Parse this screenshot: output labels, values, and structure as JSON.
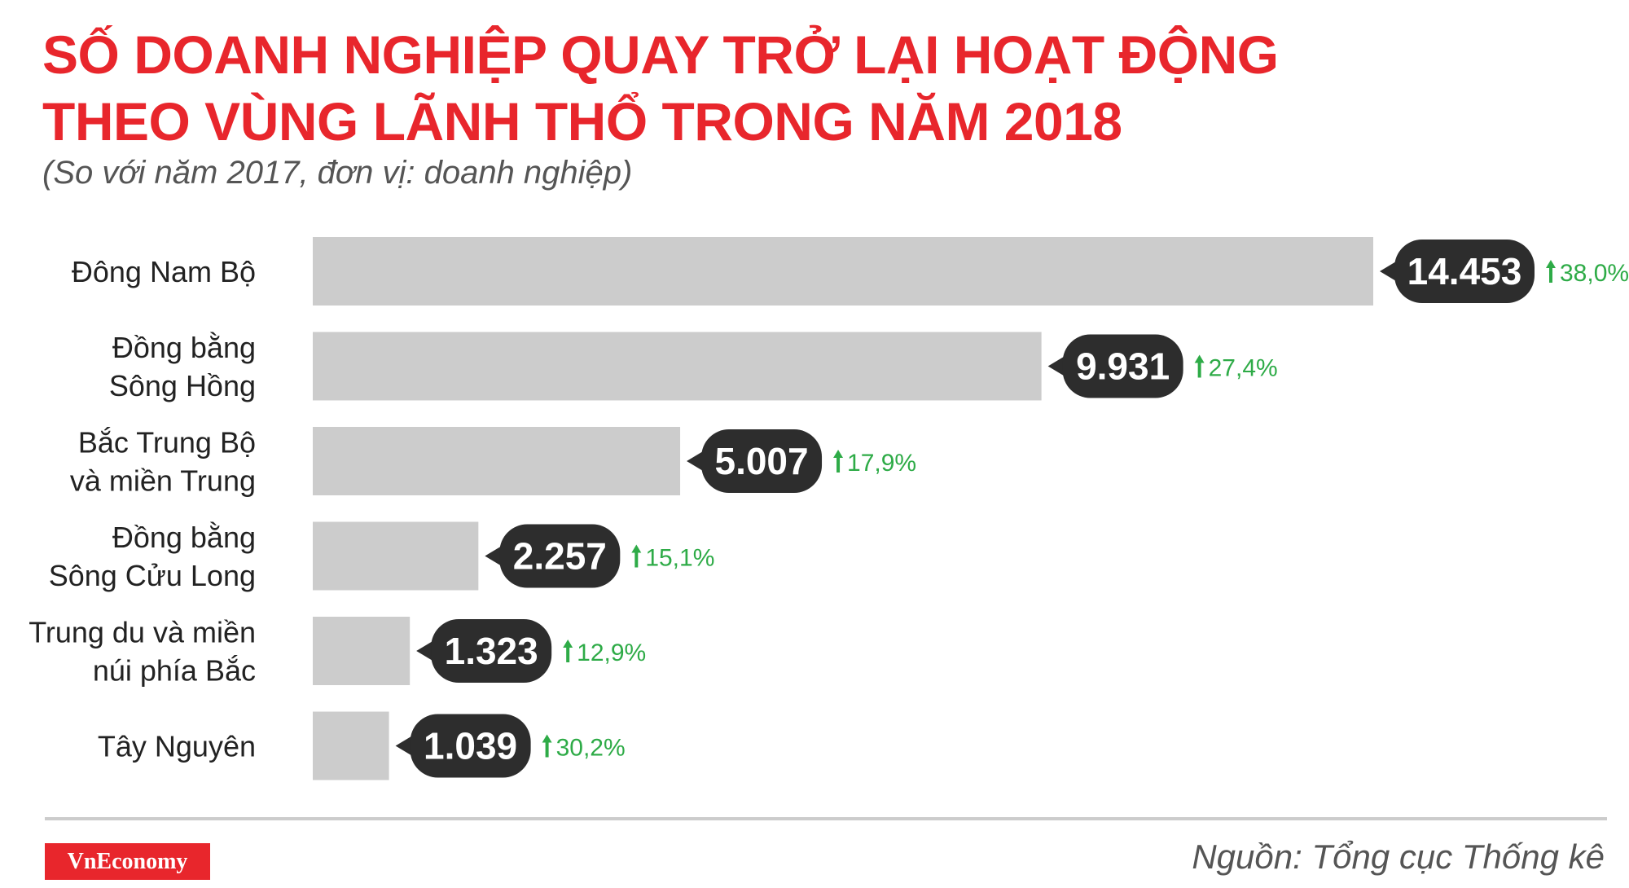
{
  "header": {
    "title_line1": "SỐ DOANH NGHIỆP QUAY TRỞ LẠI HOẠT ĐỘNG",
    "title_line2": "THEO VÙNG LÃNH THỔ TRONG NĂM 2018",
    "subtitle": "(So với năm 2017, đơn vị: doanh nghiệp)"
  },
  "footer": {
    "logo": "VnEconomy",
    "source": "Nguồn: Tổng cục Thống kê"
  },
  "colors": {
    "title": "#e8262c",
    "bar": "#cccccc",
    "callout": "#2d2d2d",
    "increase": "#2eab47"
  },
  "chart_data": {
    "type": "bar",
    "orientation": "horizontal",
    "title": "SỐ DOANH NGHIỆP QUAY TRỞ LẠI HOẠT ĐỘNG THEO VÙNG LÃNH THỔ TRONG NĂM 2018",
    "subtitle": "(So với năm 2017, đơn vị: doanh nghiệp)",
    "categories": [
      [
        "Đông Nam Bộ"
      ],
      [
        "Đồng bằng",
        "Sông Hồng"
      ],
      [
        "Bắc Trung Bộ",
        "và miền Trung"
      ],
      [
        "Đồng bằng",
        "Sông Cửu Long"
      ],
      [
        "Trung du và miền",
        "núi phía Bắc"
      ],
      [
        "Tây Nguyên"
      ]
    ],
    "values": [
      14453,
      9931,
      5007,
      2257,
      1323,
      1039
    ],
    "value_labels": [
      "14.453",
      "9.931",
      "5.007",
      "2.257",
      "1.323",
      "1.039"
    ],
    "change_labels": [
      "38,0%",
      "27,4%",
      "17,9%",
      "15,1%",
      "12,9%",
      "30,2%"
    ],
    "change_direction": [
      "up",
      "up",
      "up",
      "up",
      "up",
      "up"
    ],
    "xlim": [
      0,
      14453
    ],
    "grid": false,
    "legend": "none"
  }
}
